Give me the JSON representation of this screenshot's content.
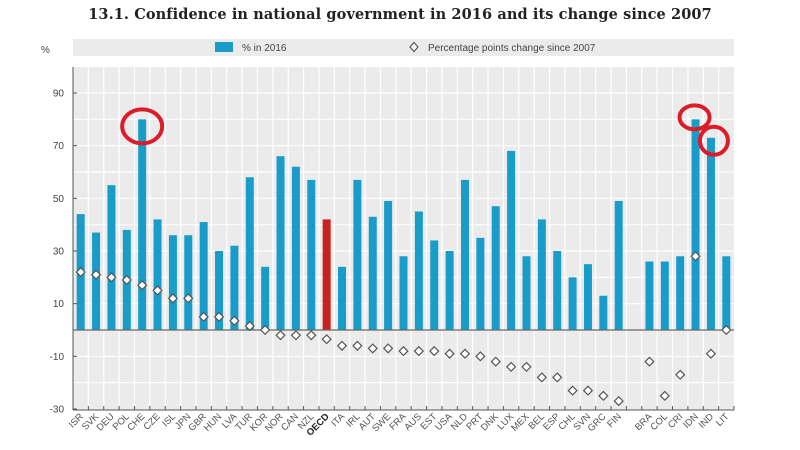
{
  "chart_data": {
    "type": "bar",
    "title": "13.1. Confidence in national government in 2016 and its change since 2007",
    "ylabel": "%",
    "xlabel": "",
    "ylim": [
      -30,
      100
    ],
    "yticks": [
      -30,
      -10,
      10,
      30,
      50,
      70,
      90
    ],
    "grid": true,
    "legend": {
      "placement": "top",
      "entries": [
        {
          "name": "% in 2016",
          "marker": "bar"
        },
        {
          "name": "Percentage points change since 2007",
          "marker": "diamond"
        }
      ]
    },
    "categories": [
      "ISR",
      "SVK",
      "DEU",
      "POL",
      "CHE",
      "CZE",
      "ISL",
      "JPN",
      "GBR",
      "HUN",
      "LVA",
      "TUR",
      "KOR",
      "NOR",
      "CAN",
      "NZL",
      "OECD",
      "ITA",
      "IRL",
      "AUT",
      "SWE",
      "FRA",
      "AUS",
      "EST",
      "USA",
      "NLD",
      "PRT",
      "DNK",
      "LUX",
      "MEX",
      "BEL",
      "ESP",
      "CHL",
      "SVN",
      "GRC",
      "FIN",
      "",
      "BRA",
      "COL",
      "CRI",
      "IDN",
      "IND",
      "LIT"
    ],
    "highlighted_category": "OECD",
    "series": [
      {
        "name": "% in 2016",
        "type": "bar",
        "values": [
          44,
          37,
          55,
          38,
          80,
          42,
          36,
          36,
          41,
          30,
          32,
          58,
          24,
          66,
          62,
          57,
          42,
          24,
          57,
          43,
          49,
          28,
          45,
          34,
          30,
          57,
          35,
          47,
          68,
          28,
          42,
          30,
          20,
          25,
          13,
          49,
          null,
          26,
          26,
          28,
          80,
          73,
          28
        ]
      },
      {
        "name": "Percentage points change since 2007",
        "type": "scatter",
        "values": [
          22,
          21,
          20,
          19,
          17,
          15,
          12,
          12,
          5,
          5,
          3.5,
          1.5,
          0,
          -2,
          -2,
          -2,
          -3.5,
          -6,
          -6,
          -7,
          -7,
          -8,
          -8,
          -8,
          -9,
          -9,
          -10,
          -12,
          -14,
          -14,
          -18,
          -18,
          -23,
          -23,
          -25,
          -27,
          null,
          -12,
          -25,
          -17,
          28,
          -9,
          0
        ]
      }
    ],
    "annotations": [
      {
        "type": "red-circle",
        "category": "CHE"
      },
      {
        "type": "red-circle",
        "category": "IDN"
      },
      {
        "type": "red-circle",
        "category": "IND"
      }
    ],
    "colors": {
      "bar": "#1a9cc9",
      "highlight_bar": "#cc1f1f",
      "annotation": "#dd1c2a",
      "plot_bg": "#ebebeb",
      "grid": "#ffffff"
    }
  }
}
